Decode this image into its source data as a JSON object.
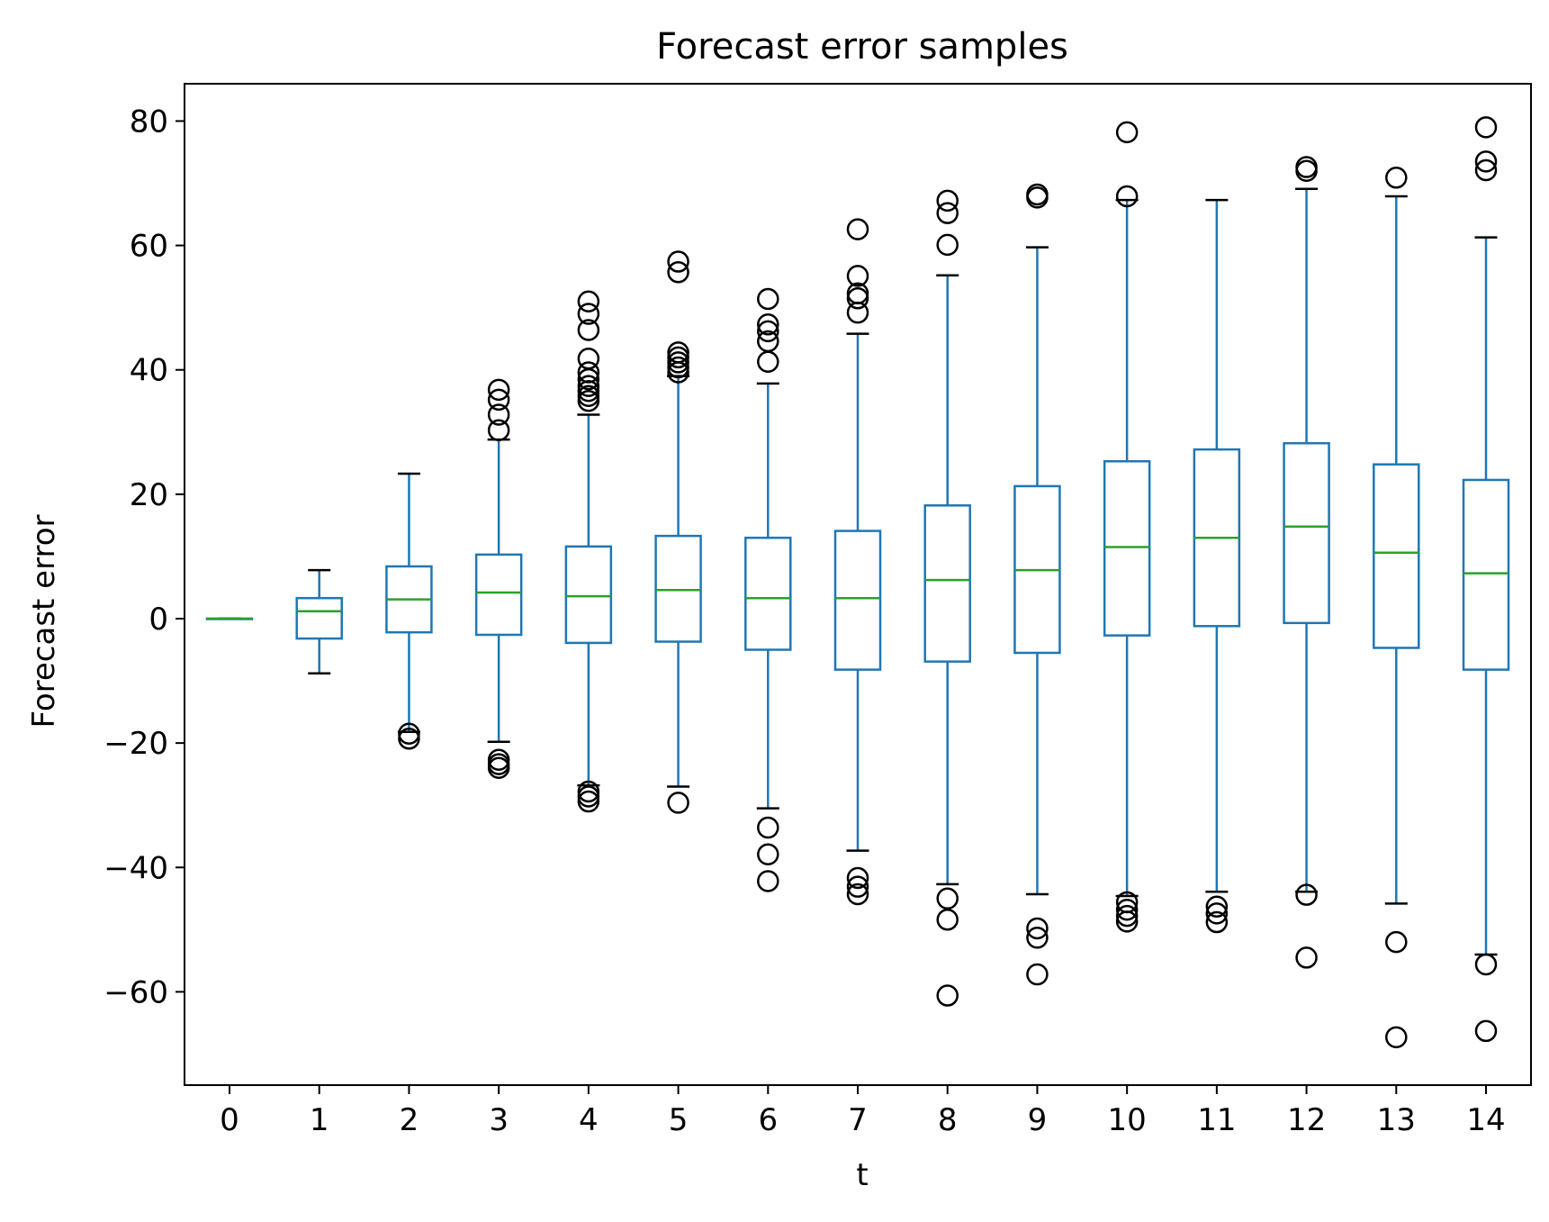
{
  "chart_data": {
    "type": "box",
    "title": "Forecast error samples",
    "xlabel": "t",
    "ylabel": "Forecast error",
    "ylim": [
      -75,
      86
    ],
    "yticks": [
      -60,
      -40,
      -20,
      0,
      20,
      40,
      60,
      80
    ],
    "ytick_labels": [
      "−60",
      "−40",
      "−20",
      "0",
      "20",
      "40",
      "60",
      "80"
    ],
    "grid": false,
    "colors": {
      "box": "#1f77b4",
      "median": "#2ca02c",
      "whisker": "#1f77b4",
      "cap": "#000000",
      "flier": "#000000"
    },
    "categories": [
      "0",
      "1",
      "2",
      "3",
      "4",
      "5",
      "6",
      "7",
      "8",
      "9",
      "10",
      "11",
      "12",
      "13",
      "14"
    ],
    "boxes": [
      {
        "t": "0",
        "whislo": 0,
        "q1": 0,
        "med": 0,
        "q3": 0,
        "whishi": 0,
        "fliers": []
      },
      {
        "t": "1",
        "whislo": -8.8,
        "q1": -3.2,
        "med": 1.2,
        "q3": 3.3,
        "whishi": 7.8,
        "fliers": []
      },
      {
        "t": "2",
        "whislo": -18.2,
        "q1": -2.2,
        "med": 3.1,
        "q3": 8.4,
        "whishi": 23.3,
        "fliers": [
          -18.5,
          -19.3
        ]
      },
      {
        "t": "3",
        "whislo": -19.8,
        "q1": -2.6,
        "med": 4.2,
        "q3": 10.3,
        "whishi": 28.8,
        "fliers": [
          30.3,
          32.8,
          35.2,
          36.8,
          -22.7,
          -23.4,
          -24.0
        ]
      },
      {
        "t": "4",
        "whislo": -26.8,
        "q1": -3.9,
        "med": 3.6,
        "q3": 11.6,
        "whishi": 32.8,
        "fliers": [
          35.0,
          35.8,
          36.6,
          37.4,
          38.5,
          39.6,
          41.8,
          46.4,
          49.0,
          51.0,
          -27.8,
          -28.6,
          -29.4
        ]
      },
      {
        "t": "5",
        "whislo": -27.0,
        "q1": -3.7,
        "med": 4.6,
        "q3": 13.3,
        "whishi": 39.0,
        "fliers": [
          39.6,
          40.4,
          41.2,
          42.0,
          42.8,
          55.7,
          57.4,
          -29.6
        ]
      },
      {
        "t": "6",
        "whislo": -30.5,
        "q1": -5.0,
        "med": 3.3,
        "q3": 13.0,
        "whishi": 37.8,
        "fliers": [
          41.3,
          44.6,
          46.2,
          47.3,
          51.4,
          -33.6,
          -37.9,
          -42.2
        ]
      },
      {
        "t": "7",
        "whislo": -37.3,
        "q1": -8.2,
        "med": 3.3,
        "q3": 14.1,
        "whishi": 45.8,
        "fliers": [
          49.2,
          51.5,
          52.3,
          55.1,
          62.6,
          -41.7,
          -43.1,
          -44.3
        ]
      },
      {
        "t": "8",
        "whislo": -42.7,
        "q1": -6.9,
        "med": 6.2,
        "q3": 18.2,
        "whishi": 55.2,
        "fliers": [
          60.1,
          65.2,
          67.2,
          -45.0,
          -48.4,
          -60.6
        ]
      },
      {
        "t": "9",
        "whislo": -44.3,
        "q1": -5.5,
        "med": 7.8,
        "q3": 21.3,
        "whishi": 59.7,
        "fliers": [
          67.7,
          68.2,
          -49.8,
          -51.3,
          -57.2
        ]
      },
      {
        "t": "10",
        "whislo": -44.6,
        "q1": -2.7,
        "med": 11.5,
        "q3": 25.3,
        "whishi": 67.3,
        "fliers": [
          67.9,
          78.2,
          -45.6,
          -46.8,
          -47.8,
          -48.7
        ]
      },
      {
        "t": "11",
        "whislo": -43.9,
        "q1": -1.2,
        "med": 13.0,
        "q3": 27.2,
        "whishi": 67.3,
        "fliers": [
          -46.3,
          -47.4,
          -48.8
        ]
      },
      {
        "t": "12",
        "whislo": -43.9,
        "q1": -0.7,
        "med": 14.8,
        "q3": 28.2,
        "whishi": 69.1,
        "fliers": [
          72.0,
          72.6,
          -44.4,
          -54.5
        ]
      },
      {
        "t": "13",
        "whislo": -45.8,
        "q1": -4.7,
        "med": 10.6,
        "q3": 24.8,
        "whishi": 67.9,
        "fliers": [
          70.9,
          -52.0,
          -67.3
        ]
      },
      {
        "t": "14",
        "whislo": -54.0,
        "q1": -8.2,
        "med": 7.3,
        "q3": 22.3,
        "whishi": 61.3,
        "fliers": [
          72.1,
          73.5,
          79.0,
          -55.6,
          -66.3
        ]
      }
    ]
  }
}
